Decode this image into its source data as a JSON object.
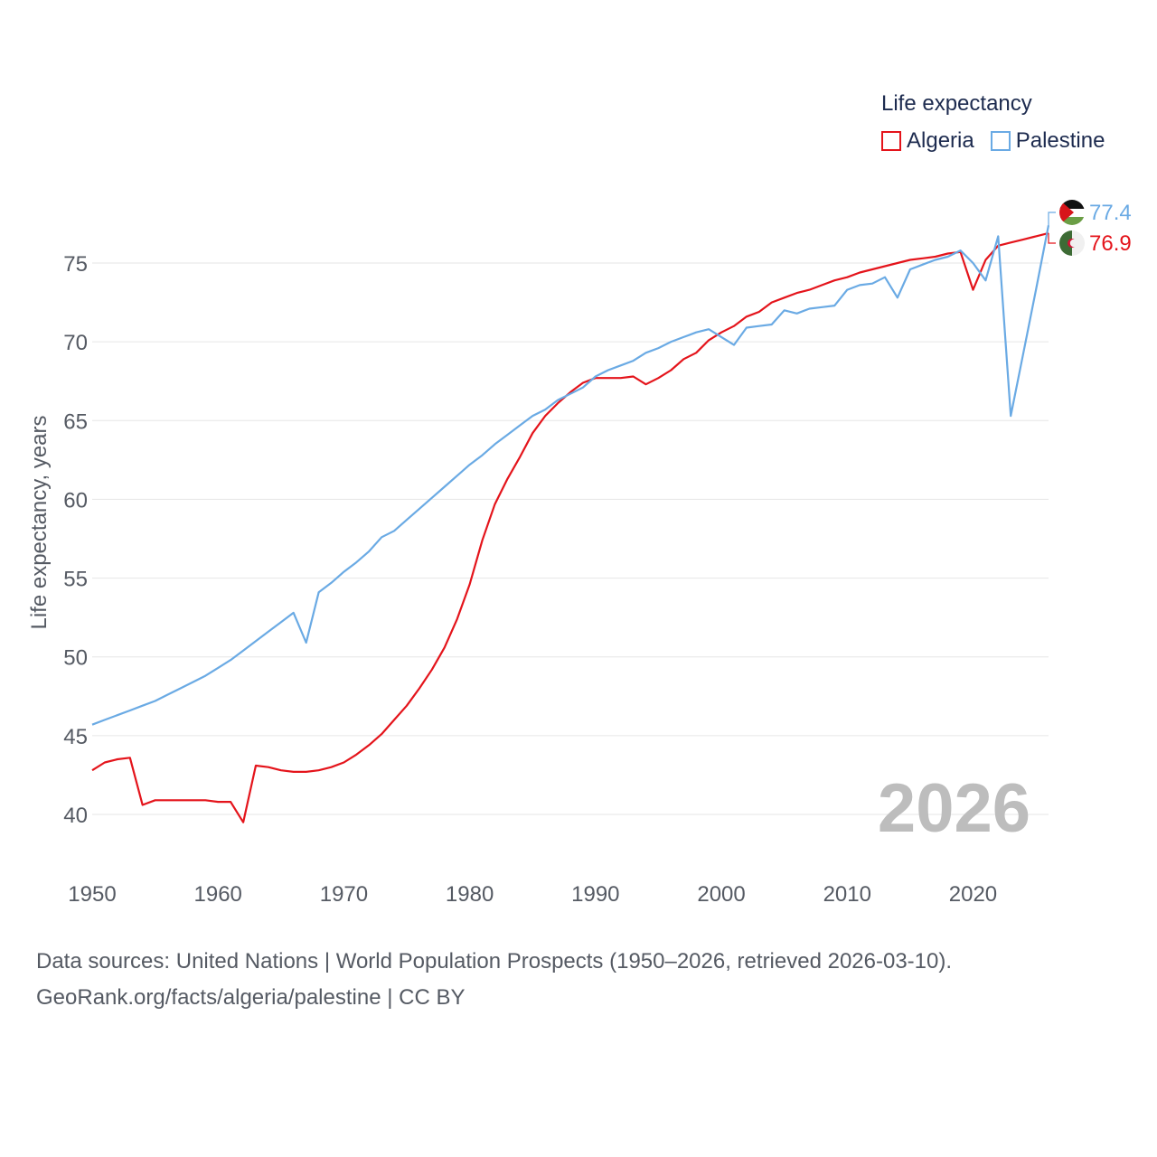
{
  "legend": {
    "title": "Life expectancy",
    "items": [
      {
        "label": "Algeria",
        "color": "#e4141b"
      },
      {
        "label": "Palestine",
        "color": "#6aaae4"
      }
    ]
  },
  "source": {
    "line1": "Data sources: United Nations | World Population Prospects (1950–2026, retrieved 2026-03-10).",
    "line2": "GeoRank.org/facts/algeria/palestine | CC BY"
  },
  "chart_data": {
    "type": "line",
    "title": "Life expectancy",
    "xlabel": "",
    "ylabel": "Life expectancy, years",
    "xlim": [
      1950,
      2026
    ],
    "ylim": [
      38,
      78.5
    ],
    "x_ticks": [
      "1950",
      "1960",
      "1970",
      "1980",
      "1990",
      "2000",
      "2010",
      "2020"
    ],
    "y_ticks": [
      "40",
      "45",
      "50",
      "55",
      "60",
      "65",
      "70",
      "75"
    ],
    "grid": true,
    "watermark_year": "2026",
    "series": [
      {
        "name": "Algeria",
        "color": "#e4141b",
        "end_label": "76.9",
        "points": [
          [
            1950,
            42.8
          ],
          [
            1951,
            43.3
          ],
          [
            1952,
            43.5
          ],
          [
            1953,
            43.6
          ],
          [
            1954,
            40.6
          ],
          [
            1955,
            40.9
          ],
          [
            1956,
            40.9
          ],
          [
            1957,
            40.9
          ],
          [
            1958,
            40.9
          ],
          [
            1959,
            40.9
          ],
          [
            1960,
            40.8
          ],
          [
            1961,
            40.8
          ],
          [
            1962,
            39.5
          ],
          [
            1963,
            43.1
          ],
          [
            1964,
            43.0
          ],
          [
            1965,
            42.8
          ],
          [
            1966,
            42.7
          ],
          [
            1967,
            42.7
          ],
          [
            1968,
            42.8
          ],
          [
            1969,
            43.0
          ],
          [
            1970,
            43.3
          ],
          [
            1971,
            43.8
          ],
          [
            1972,
            44.4
          ],
          [
            1973,
            45.1
          ],
          [
            1974,
            46.0
          ],
          [
            1975,
            46.9
          ],
          [
            1976,
            48.0
          ],
          [
            1977,
            49.2
          ],
          [
            1978,
            50.6
          ],
          [
            1979,
            52.4
          ],
          [
            1980,
            54.6
          ],
          [
            1981,
            57.4
          ],
          [
            1982,
            59.7
          ],
          [
            1983,
            61.3
          ],
          [
            1984,
            62.7
          ],
          [
            1985,
            64.2
          ],
          [
            1986,
            65.3
          ],
          [
            1987,
            66.1
          ],
          [
            1988,
            66.8
          ],
          [
            1989,
            67.4
          ],
          [
            1990,
            67.7
          ],
          [
            1991,
            67.7
          ],
          [
            1992,
            67.7
          ],
          [
            1993,
            67.8
          ],
          [
            1994,
            67.3
          ],
          [
            1995,
            67.7
          ],
          [
            1996,
            68.2
          ],
          [
            1997,
            68.9
          ],
          [
            1998,
            69.3
          ],
          [
            1999,
            70.1
          ],
          [
            2000,
            70.6
          ],
          [
            2001,
            71.0
          ],
          [
            2002,
            71.6
          ],
          [
            2003,
            71.9
          ],
          [
            2004,
            72.5
          ],
          [
            2005,
            72.8
          ],
          [
            2006,
            73.1
          ],
          [
            2007,
            73.3
          ],
          [
            2008,
            73.6
          ],
          [
            2009,
            73.9
          ],
          [
            2010,
            74.1
          ],
          [
            2011,
            74.4
          ],
          [
            2012,
            74.6
          ],
          [
            2013,
            74.8
          ],
          [
            2014,
            75.0
          ],
          [
            2015,
            75.2
          ],
          [
            2016,
            75.3
          ],
          [
            2017,
            75.4
          ],
          [
            2018,
            75.6
          ],
          [
            2019,
            75.7
          ],
          [
            2020,
            73.3
          ],
          [
            2021,
            75.2
          ],
          [
            2022,
            76.1
          ],
          [
            2023,
            76.3
          ],
          [
            2024,
            76.5
          ],
          [
            2025,
            76.7
          ],
          [
            2026,
            76.9
          ]
        ]
      },
      {
        "name": "Palestine",
        "color": "#6aaae4",
        "end_label": "77.4",
        "points": [
          [
            1950,
            45.7
          ],
          [
            1951,
            46.0
          ],
          [
            1952,
            46.3
          ],
          [
            1953,
            46.6
          ],
          [
            1954,
            46.9
          ],
          [
            1955,
            47.2
          ],
          [
            1956,
            47.6
          ],
          [
            1957,
            48.0
          ],
          [
            1958,
            48.4
          ],
          [
            1959,
            48.8
          ],
          [
            1960,
            49.3
          ],
          [
            1961,
            49.8
          ],
          [
            1962,
            50.4
          ],
          [
            1963,
            51.0
          ],
          [
            1964,
            51.6
          ],
          [
            1965,
            52.2
          ],
          [
            1966,
            52.8
          ],
          [
            1967,
            50.9
          ],
          [
            1968,
            54.1
          ],
          [
            1969,
            54.7
          ],
          [
            1970,
            55.4
          ],
          [
            1971,
            56.0
          ],
          [
            1972,
            56.7
          ],
          [
            1973,
            57.6
          ],
          [
            1974,
            58.0
          ],
          [
            1975,
            58.7
          ],
          [
            1976,
            59.4
          ],
          [
            1977,
            60.1
          ],
          [
            1978,
            60.8
          ],
          [
            1979,
            61.5
          ],
          [
            1980,
            62.2
          ],
          [
            1981,
            62.8
          ],
          [
            1982,
            63.5
          ],
          [
            1983,
            64.1
          ],
          [
            1984,
            64.7
          ],
          [
            1985,
            65.3
          ],
          [
            1986,
            65.7
          ],
          [
            1987,
            66.3
          ],
          [
            1988,
            66.7
          ],
          [
            1989,
            67.1
          ],
          [
            1990,
            67.8
          ],
          [
            1991,
            68.2
          ],
          [
            1992,
            68.5
          ],
          [
            1993,
            68.8
          ],
          [
            1994,
            69.3
          ],
          [
            1995,
            69.6
          ],
          [
            1996,
            70.0
          ],
          [
            1997,
            70.3
          ],
          [
            1998,
            70.6
          ],
          [
            1999,
            70.8
          ],
          [
            2000,
            70.3
          ],
          [
            2001,
            69.8
          ],
          [
            2002,
            70.9
          ],
          [
            2003,
            71.0
          ],
          [
            2004,
            71.1
          ],
          [
            2005,
            72.0
          ],
          [
            2006,
            71.8
          ],
          [
            2007,
            72.1
          ],
          [
            2008,
            72.2
          ],
          [
            2009,
            72.3
          ],
          [
            2010,
            73.3
          ],
          [
            2011,
            73.6
          ],
          [
            2012,
            73.7
          ],
          [
            2013,
            74.1
          ],
          [
            2014,
            72.8
          ],
          [
            2015,
            74.6
          ],
          [
            2016,
            74.9
          ],
          [
            2017,
            75.2
          ],
          [
            2018,
            75.4
          ],
          [
            2019,
            75.8
          ],
          [
            2020,
            75.0
          ],
          [
            2021,
            73.9
          ],
          [
            2022,
            76.7
          ],
          [
            2023,
            65.3
          ],
          [
            2024,
            69.3
          ],
          [
            2025,
            73.3
          ],
          [
            2026,
            77.4
          ]
        ]
      }
    ]
  }
}
